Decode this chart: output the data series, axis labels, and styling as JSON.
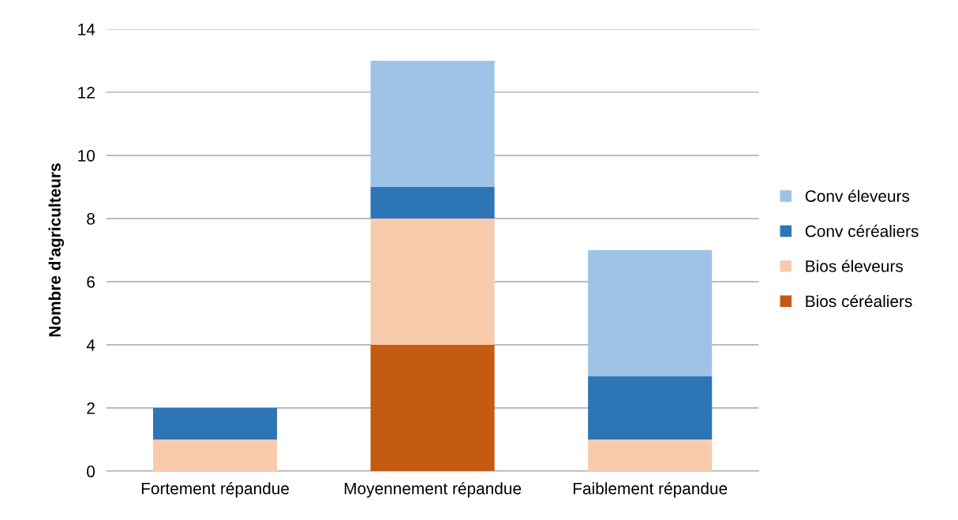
{
  "chart_data": {
    "type": "bar",
    "stacked": true,
    "ylabel": "Nombre d'agriculteurs",
    "categories": [
      "Fortement répandue",
      "Moyennement répandue",
      "Faiblement répandue"
    ],
    "series": [
      {
        "name": "Bios céréaliers",
        "color": "#c55a11",
        "values": [
          0,
          4,
          0
        ]
      },
      {
        "name": "Bios éleveurs",
        "color": "#f8cbad",
        "values": [
          1,
          4,
          1
        ]
      },
      {
        "name": "Conv céréaliers",
        "color": "#2e75b6",
        "values": [
          1,
          1,
          2
        ]
      },
      {
        "name": "Conv éleveurs",
        "color": "#9dc3e6",
        "values": [
          0,
          4,
          4
        ]
      }
    ],
    "ylim": [
      0,
      14
    ],
    "yticks": [
      0,
      2,
      4,
      6,
      8,
      10,
      12,
      14
    ],
    "grid": "y",
    "legend": "right"
  }
}
